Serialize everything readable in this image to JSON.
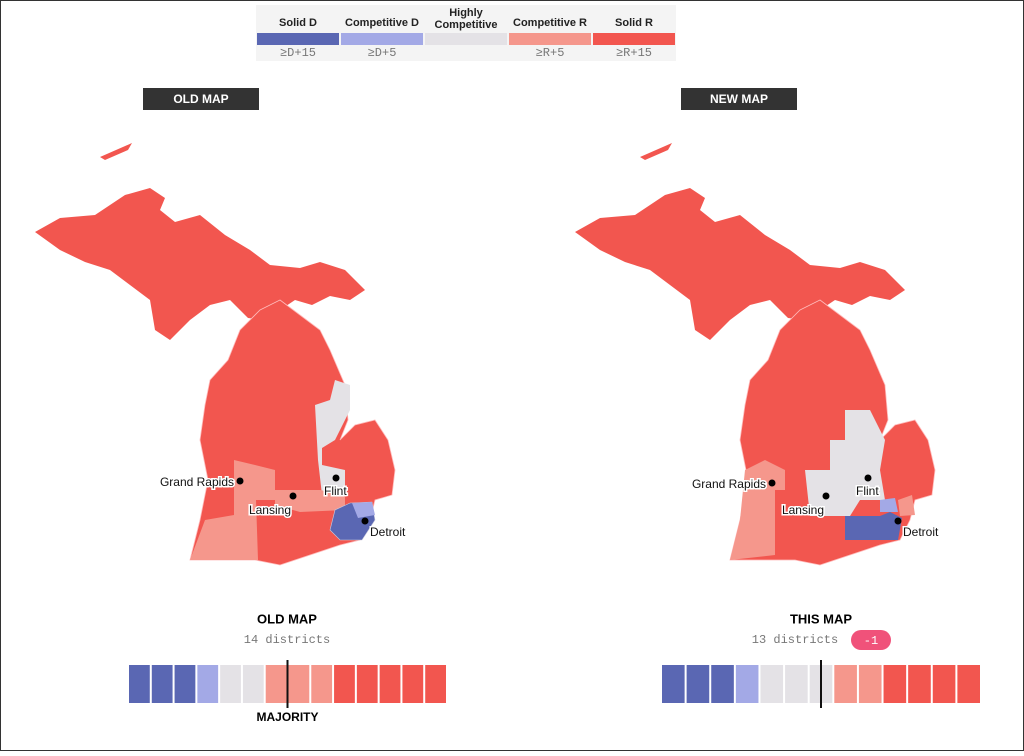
{
  "legend": [
    {
      "label": "Solid D",
      "sublabel": "≥D+15",
      "color": "#5a67b3"
    },
    {
      "label": "Competitive D",
      "sublabel": "≥D+5",
      "color": "#a3a9e6"
    },
    {
      "label": "Highly Competitive",
      "color": "#e4e2e6"
    },
    {
      "label": "Competitive R",
      "sublabel": "≥R+5",
      "color": "#f5978c"
    },
    {
      "label": "Solid R",
      "sublabel": "≥R+15",
      "color": "#f2564f"
    }
  ],
  "maps": [
    {
      "title": "OLD MAP",
      "cities": [
        "Grand Rapids",
        "Lansing",
        "Flint",
        "Detroit"
      ],
      "summary": {
        "title": "OLD MAP",
        "subtitle": "14 districts",
        "counts": [
          3,
          1,
          2,
          3,
          5
        ],
        "majority": "MAJORITY"
      }
    },
    {
      "title": "NEW MAP",
      "cities": [
        "Grand Rapids",
        "Lansing",
        "Flint",
        "Detroit"
      ],
      "summary": {
        "title": "THIS MAP",
        "subtitle": "13 districts",
        "change": "-1",
        "counts": [
          3,
          1,
          3,
          2,
          4
        ]
      }
    }
  ]
}
